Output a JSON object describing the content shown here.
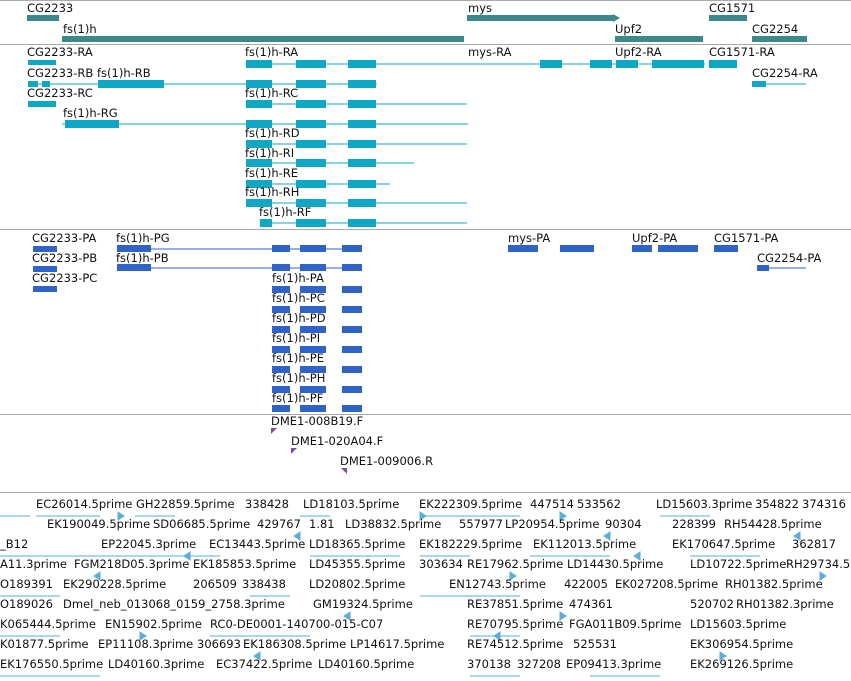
{
  "tracks": {
    "genes": {
      "color": "#3a8a8c",
      "labels": [
        "CG2233",
        "fs(1)h",
        "mys",
        "Upf2",
        "CG1571",
        "CG2254"
      ]
    },
    "transcripts": {
      "color": "#0ea8c6",
      "labels": [
        "CG2233-RA",
        "CG2233-RB",
        "fs(1)h-RB",
        "CG2233-RC",
        "fs(1)h-RG",
        "fs(1)h-RA",
        "fs(1)h-RC",
        "fs(1)h-RD",
        "fs(1)h-RI",
        "fs(1)h-RE",
        "fs(1)h-RH",
        "fs(1)h-RF",
        "mys-RA",
        "Upf2-RA",
        "CG1571-RA",
        "CG2254-RA"
      ]
    },
    "proteins": {
      "color": "#2f63c8",
      "labels": [
        "CG2233-PA",
        "CG2233-PB",
        "CG2233-PC",
        "fs(1)h-PG",
        "fs(1)h-PB",
        "fs(1)h-PA",
        "fs(1)h-PC",
        "fs(1)h-PD",
        "fs(1)h-PI",
        "fs(1)h-PE",
        "fs(1)h-PH",
        "fs(1)h-PF",
        "mys-PA",
        "Upf2-PA",
        "CG1571-PA",
        "CG2254-PA"
      ]
    },
    "clones": {
      "color": "#7b4fa6",
      "labels": [
        "DME1-008B19.F",
        "DME1-020A04.F",
        "DME1-009006.R"
      ]
    },
    "est": {
      "color": "#5aaedc",
      "rows": [
        [
          "EC26014.5prime",
          "GH22859.5prime",
          "338428",
          "LD18103.5prime",
          "EK222309.5prime",
          "447514",
          "533562",
          "LD15603.3prime",
          "354822",
          "374316"
        ],
        [
          "EK190049.5prime",
          "SD06685.5prime",
          "429767",
          "1.81",
          "LD38832.5prime",
          "557977",
          "LP20954.5prime",
          "90304",
          "228399",
          "RH54428.5prime"
        ],
        [
          "_B12",
          "EP22045.3prime",
          "EC13443.5prime",
          "LD18365.5prime",
          "EK182229.5prime",
          "EK112013.5prime",
          "EK170647.5prime",
          "362817"
        ],
        [
          "A11.3prime",
          "FGM218D05.3prime",
          "EK185853.5prime",
          "LD45355.5prime",
          "303634",
          "RE17962.5prime",
          "LD14430.5prime",
          "LD10722.5prime",
          "RH29734.5p"
        ],
        [
          "O189391",
          "EK290228.5prime",
          "206509",
          "338438",
          "LD20802.5prime",
          "EN12743.5prime",
          "422005",
          "EK027208.5prime",
          "RH01382.5prime"
        ],
        [
          "O189026",
          "Dmel_neb_013068_0159_2758.3prime",
          "GM19324.5prime",
          "RE37851.5prime",
          "474361",
          "520702",
          "RH01382.3prime"
        ],
        [
          "K065444.5prime",
          "EN15902.5prime",
          "RC0-DE0001-140700-015-C07",
          "RE70795.5prime",
          "FGA011B09.5prime",
          "LD15603.5prime"
        ],
        [
          "K01877.5prime",
          "EP11108.3prime",
          "306693",
          "EK186308.5prime",
          "LP14617.5prime",
          "RE74512.5prime",
          "525531",
          "EK306954.5prime"
        ],
        [
          "EK176550.5prime",
          "LD40160.3prime",
          "EC37422.5prime",
          "LD40160.5prime",
          "370138",
          "327208",
          "EP09413.3prime",
          "EK269126.5prime"
        ]
      ]
    }
  }
}
